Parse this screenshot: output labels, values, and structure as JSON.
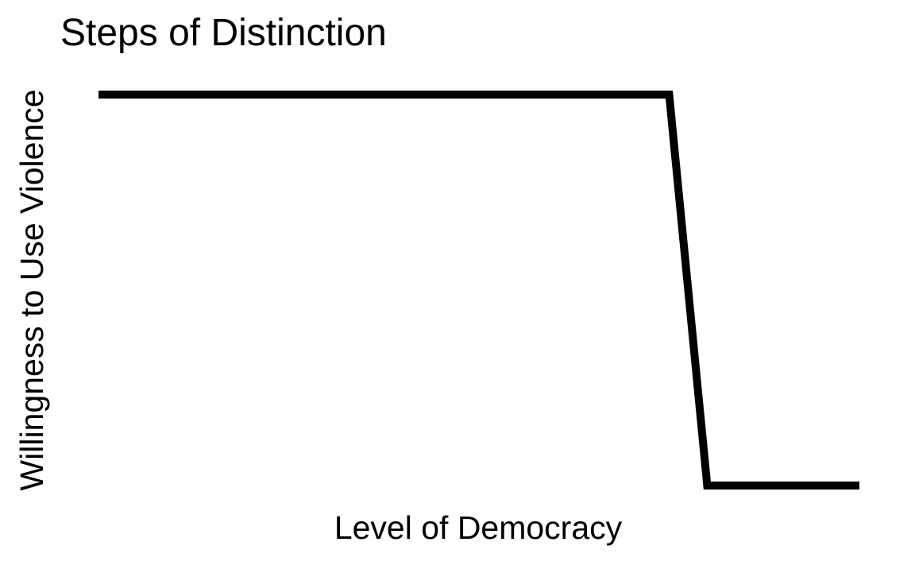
{
  "chart_data": {
    "type": "line",
    "title": "Steps of Distinction",
    "xlabel": "Level of Democracy",
    "ylabel": "Willingness to Use Violence",
    "x_ticks_shown": false,
    "y_ticks_shown": false,
    "grid": false,
    "xlim": [
      0,
      1
    ],
    "ylim": [
      0,
      1
    ],
    "series": [
      {
        "color": "#000000",
        "points": [
          {
            "x": 0.0,
            "y": 1.0
          },
          {
            "x": 0.75,
            "y": 1.0
          },
          {
            "x": 0.8,
            "y": 0.0
          },
          {
            "x": 1.0,
            "y": 0.0
          }
        ]
      }
    ]
  }
}
